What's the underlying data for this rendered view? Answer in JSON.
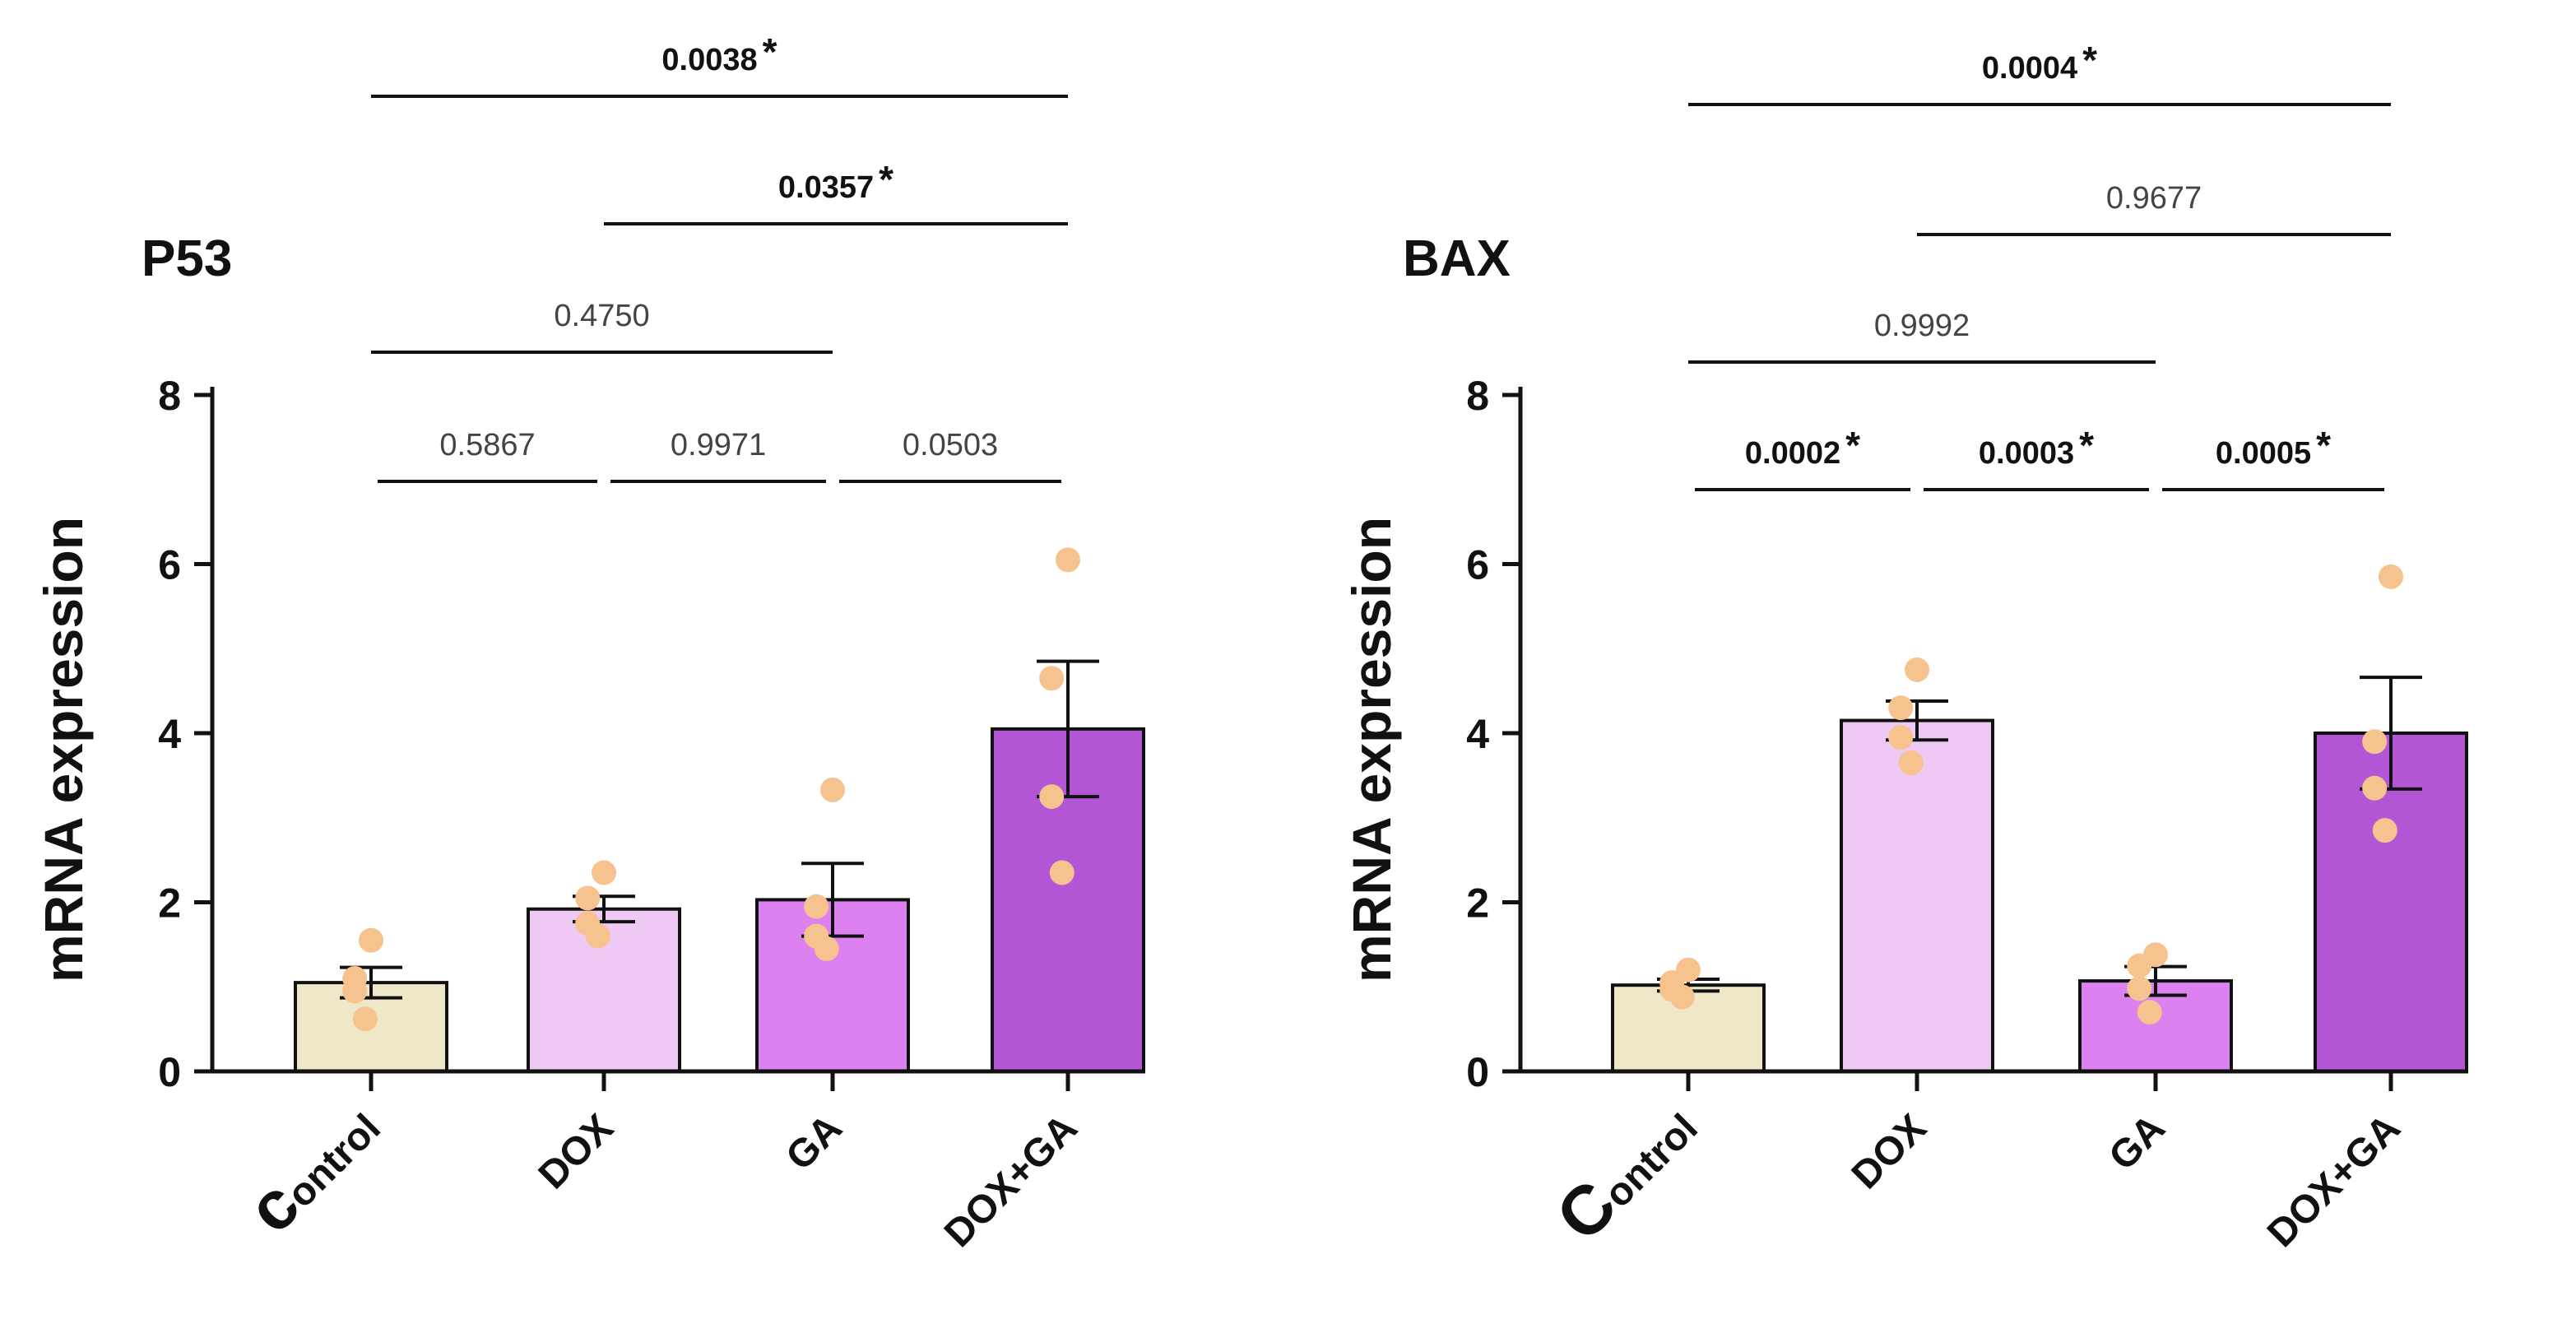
{
  "chart_data": [
    {
      "type": "bar",
      "title": "P53",
      "ylabel": "mRNA expression",
      "categories": [
        "Control",
        "DOX",
        "GA",
        "DOX+GA"
      ],
      "category_labels": [
        {
          "first": "c",
          "rest": "ontrol"
        },
        {
          "first": "",
          "rest": "DOX"
        },
        {
          "first": "",
          "rest": "GA"
        },
        {
          "first": "",
          "rest": "DOX+GA"
        }
      ],
      "values": [
        1.05,
        1.92,
        2.03,
        4.05
      ],
      "errors": [
        0.18,
        0.15,
        0.43,
        0.8
      ],
      "points": [
        [
          1.55,
          1.1,
          0.95,
          0.62
        ],
        [
          2.35,
          2.05,
          1.75,
          1.6
        ],
        [
          3.33,
          1.95,
          1.6,
          1.45
        ],
        [
          6.05,
          4.65,
          3.25,
          2.35
        ]
      ],
      "bar_colors": [
        "#EEE8C8",
        "#EDC9F3",
        "#DC82F0",
        "#B356D6"
      ],
      "point_color": "#F6C28E",
      "ylim": [
        0,
        8
      ],
      "yticks": [
        0,
        2,
        4,
        6,
        8
      ],
      "comparisons": [
        {
          "from": 0,
          "to": 3,
          "label": "0.0038",
          "star": "*",
          "bold": true
        },
        {
          "from": 1,
          "to": 3,
          "label": "0.0357",
          "star": "*",
          "bold": true
        },
        {
          "from": 0,
          "to": 2,
          "label": "0.4750",
          "star": "",
          "bold": false
        },
        {
          "from": 0,
          "to": 1,
          "label": "0.5867",
          "star": "",
          "bold": false
        },
        {
          "from": 1,
          "to": 2,
          "label": "0.9971",
          "star": "",
          "bold": false
        },
        {
          "from": 2,
          "to": 3,
          "label": "0.0503",
          "star": "",
          "bold": false
        }
      ]
    },
    {
      "type": "bar",
      "title": "BAX",
      "ylabel": "mRNA expression",
      "categories": [
        "Control",
        "DOX",
        "GA",
        "DOX+GA"
      ],
      "category_labels": [
        {
          "first": "C",
          "rest": "ontrol"
        },
        {
          "first": "",
          "rest": "DOX"
        },
        {
          "first": "",
          "rest": "GA"
        },
        {
          "first": "",
          "rest": "DOX+GA"
        }
      ],
      "values": [
        1.02,
        4.15,
        1.07,
        4.0
      ],
      "errors": [
        0.07,
        0.23,
        0.17,
        0.66
      ],
      "points": [
        [
          1.2,
          1.05,
          0.97,
          0.88
        ],
        [
          4.75,
          4.3,
          3.95,
          3.65
        ],
        [
          1.38,
          1.25,
          0.98,
          0.7
        ],
        [
          5.85,
          3.9,
          3.35,
          2.85
        ]
      ],
      "bar_colors": [
        "#EEE8C8",
        "#EDC9F3",
        "#DC82F0",
        "#B356D6"
      ],
      "point_color": "#F6C28E",
      "ylim": [
        0,
        8
      ],
      "yticks": [
        0,
        2,
        4,
        6,
        8
      ],
      "comparisons": [
        {
          "from": 0,
          "to": 3,
          "label": "0.0004",
          "star": "*",
          "bold": true
        },
        {
          "from": 1,
          "to": 3,
          "label": "0.9677",
          "star": "",
          "bold": false
        },
        {
          "from": 0,
          "to": 2,
          "label": "0.9992",
          "star": "",
          "bold": false
        },
        {
          "from": 0,
          "to": 1,
          "label": "0.0002",
          "star": "*",
          "bold": true
        },
        {
          "from": 1,
          "to": 2,
          "label": "0.0003",
          "star": "*",
          "bold": true
        },
        {
          "from": 2,
          "to": 3,
          "label": "0.0005",
          "star": "*",
          "bold": true
        }
      ]
    }
  ]
}
